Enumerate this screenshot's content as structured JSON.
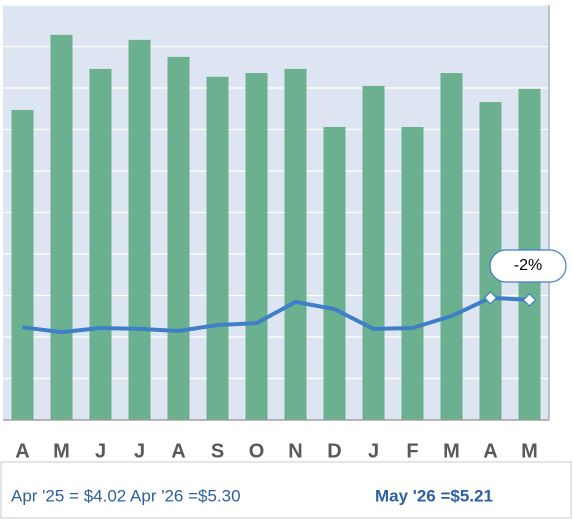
{
  "chart_data": {
    "type": "bar_line",
    "categories": [
      "A",
      "M",
      "J",
      "J",
      "A",
      "S",
      "O",
      "N",
      "D",
      "J",
      "F",
      "M",
      "A",
      "M"
    ],
    "series": [
      {
        "type": "bar",
        "color": "#6bb08f",
        "values": [
          7.47,
          9.28,
          8.46,
          9.16,
          8.75,
          8.27,
          8.36,
          8.46,
          7.06,
          8.05,
          7.06,
          8.36,
          7.66,
          7.98
        ]
      },
      {
        "type": "line",
        "axis": "y2",
        "color": "#3f7fc8",
        "values": [
          4.02,
          3.81,
          3.99,
          3.95,
          3.86,
          4.12,
          4.2,
          5.12,
          4.81,
          3.95,
          3.99,
          4.51,
          5.3,
          5.21
        ]
      }
    ],
    "ylim": [
      0,
      10
    ],
    "yticks": [
      0,
      1,
      2,
      3,
      4,
      5,
      6,
      7,
      8,
      9,
      10
    ],
    "y2lim": [
      0,
      18
    ],
    "grid": true,
    "annotation": "-2%",
    "footer": {
      "left": "Apr '25 = $4.02 Apr '26 =$5.30",
      "right": "May '26 =$5.21"
    }
  }
}
